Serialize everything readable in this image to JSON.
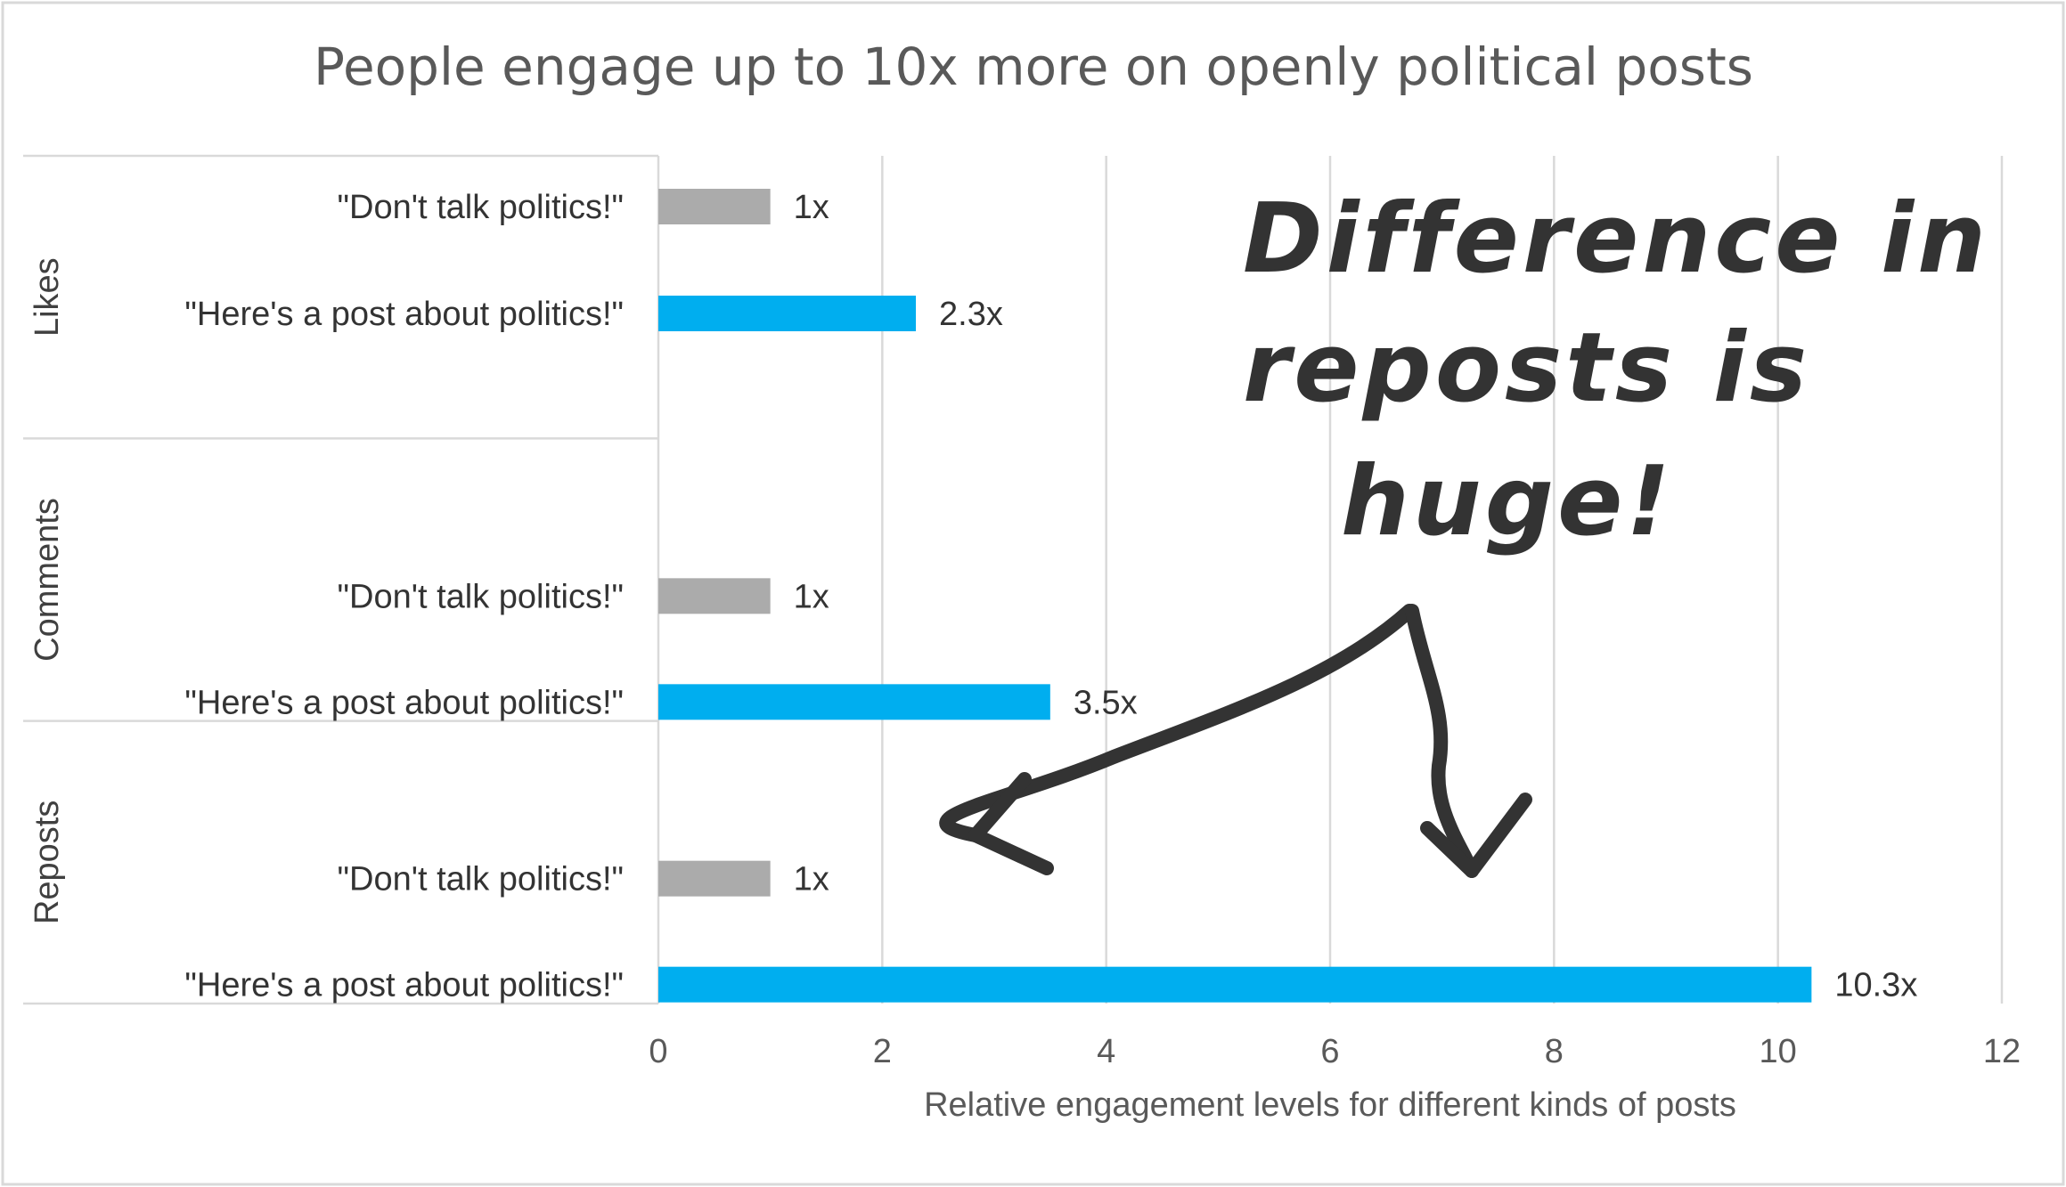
{
  "chart_data": {
    "type": "bar",
    "orientation": "horizontal",
    "title": "People engage up to 10x more on openly political posts",
    "xlabel": "Relative engagement levels for different kinds of posts",
    "ylabel": "",
    "xlim": [
      0,
      12
    ],
    "x_ticks": [
      "0",
      "2",
      "4",
      "6",
      "8",
      "10",
      "12"
    ],
    "grid": "vertical",
    "groups": [
      {
        "name": "Likes",
        "bars": [
          {
            "label": "\"Don't talk politics!\"",
            "value": 1,
            "data_label": "1x",
            "color": "#ababab"
          },
          {
            "label": "\"Here's a post about politics!\"",
            "value": 2.3,
            "data_label": "2.3x",
            "color": "#00aeef"
          }
        ]
      },
      {
        "name": "Comments",
        "bars": [
          {
            "label": "\"Don't talk politics!\"",
            "value": 1,
            "data_label": "1x",
            "color": "#ababab"
          },
          {
            "label": "\"Here's a post about politics!\"",
            "value": 3.5,
            "data_label": "3.5x",
            "color": "#00aeef"
          }
        ]
      },
      {
        "name": "Reposts",
        "bars": [
          {
            "label": "\"Don't talk politics!\"",
            "value": 1,
            "data_label": "1x",
            "color": "#ababab"
          },
          {
            "label": "\"Here's a post about politics!\"",
            "value": 10.3,
            "data_label": "10.3x",
            "color": "#00aeef"
          }
        ]
      }
    ],
    "annotation": {
      "lines": [
        "Difference in",
        "reposts is",
        "huge!"
      ],
      "color": "#333333"
    }
  }
}
